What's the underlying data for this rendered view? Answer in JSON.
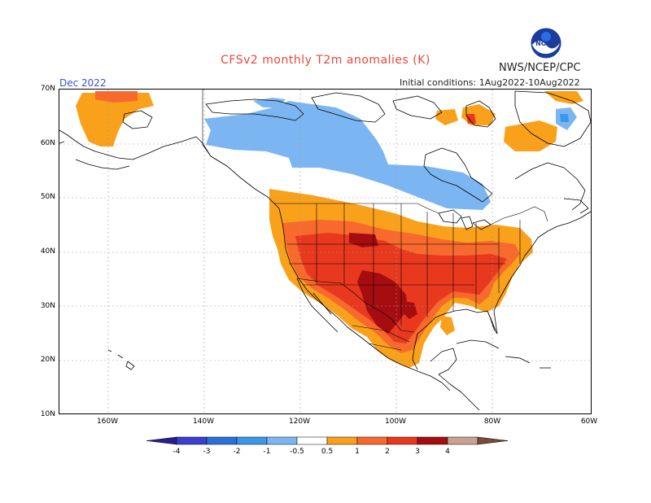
{
  "title": "CFSv2 monthly T2m anomalies (K)",
  "organization": "NWS/NCEP/CPC",
  "initial_conditions": "Initial conditions: 1Aug2022-10Aug2022",
  "valid_month": "Dec 2022",
  "logo": {
    "icon": "noaa-logo-icon",
    "text": "NOAA"
  },
  "lat_labels": [
    "70N",
    "60N",
    "50N",
    "40N",
    "30N",
    "20N",
    "10N"
  ],
  "lon_labels": [
    "160W",
    "140W",
    "120W",
    "100W",
    "80W",
    "60W"
  ],
  "colorbar": {
    "tick_labels": [
      "-4",
      "-3",
      "-2",
      "-1",
      "-0.5",
      "0.5",
      "1",
      "2",
      "3",
      "4"
    ],
    "colors": [
      "#2c1d8f",
      "#3b3fcf",
      "#2b6fd8",
      "#3d97e8",
      "#7cb6f2",
      "#ffffff",
      "#f9a11b",
      "#f7692c",
      "#e8391f",
      "#a50d11",
      "#c9a292",
      "#7a4a3a"
    ]
  },
  "colors": {
    "warm_light": "#f9a11b",
    "warm_mid": "#f7692c",
    "warm_strong": "#e8391f",
    "warm_extreme": "#a50d11",
    "cool_light": "#7cb6f2",
    "cool_mid": "#3d97e8",
    "title": "#e8473a",
    "month": "#3a4fd8"
  }
}
